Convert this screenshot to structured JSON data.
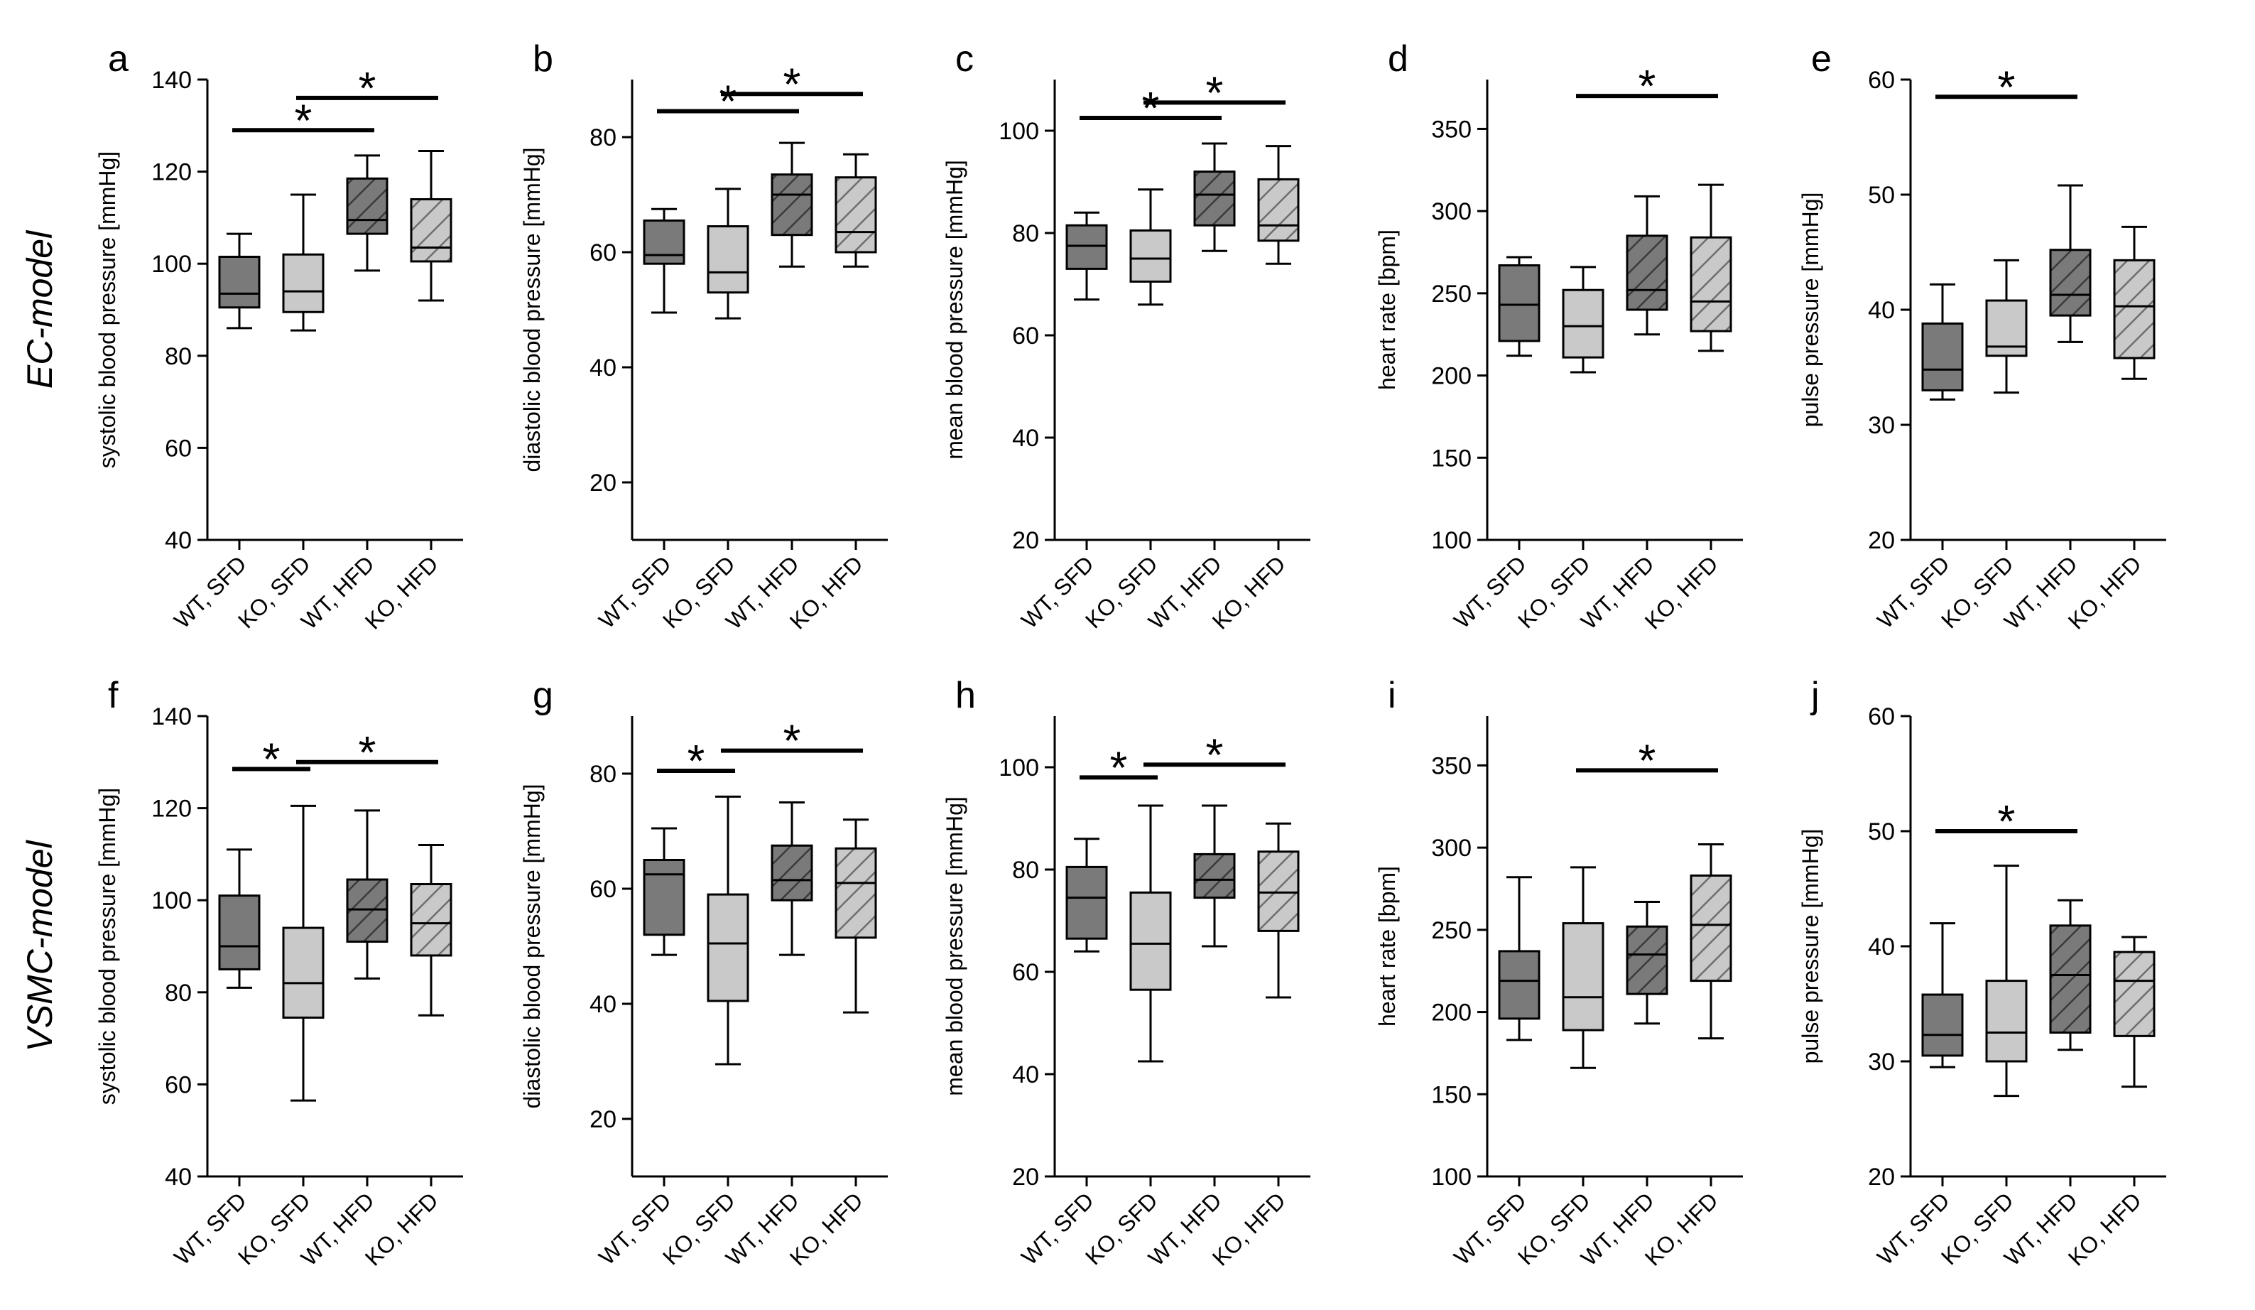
{
  "figure": {
    "row_labels": [
      "EC-model",
      "VSMC-model"
    ],
    "colors": {
      "wt_fill": "#7a7a7a",
      "ko_fill": "#c9c9c9",
      "stroke": "#000000",
      "hatch_wt": "#3a3a3a",
      "hatch_ko": "#6e6e6e"
    }
  },
  "chart_data": [
    {
      "panel": "a",
      "type": "box",
      "ylabel": "systolic blood pressure [mmHg]",
      "categories": [
        "WT, SFD",
        "KO, SFD",
        "WT, HFD",
        "KO, HFD"
      ],
      "ylim": [
        40,
        140
      ],
      "yticks": [
        40,
        60,
        80,
        100,
        120,
        140
      ],
      "boxes": [
        {
          "min": 86,
          "q1": 90.5,
          "median": 93.5,
          "q3": 101.5,
          "max": 106.5
        },
        {
          "min": 85.5,
          "q1": 89.5,
          "median": 94,
          "q3": 102,
          "max": 115
        },
        {
          "min": 98.5,
          "q1": 106.5,
          "median": 109.5,
          "q3": 118.5,
          "max": 123.5
        },
        {
          "min": 92,
          "q1": 100.5,
          "median": 103.5,
          "q3": 114,
          "max": 124.5
        }
      ],
      "significance": [
        {
          "from": 0,
          "to": 2,
          "y": 129,
          "label": "*"
        },
        {
          "from": 1,
          "to": 3,
          "y": 136,
          "label": "*"
        }
      ]
    },
    {
      "panel": "b",
      "type": "box",
      "ylabel": "diastolic blood pressure [mmHg]",
      "categories": [
        "WT, SFD",
        "KO, SFD",
        "WT, HFD",
        "KO, HFD"
      ],
      "ylim": [
        10,
        90
      ],
      "yticks": [
        20,
        40,
        60,
        80
      ],
      "boxes": [
        {
          "min": 49.5,
          "q1": 58,
          "median": 59.5,
          "q3": 65.5,
          "max": 67.5
        },
        {
          "min": 48.5,
          "q1": 53,
          "median": 56.5,
          "q3": 64.5,
          "max": 71
        },
        {
          "min": 57.5,
          "q1": 63,
          "median": 70,
          "q3": 73.5,
          "max": 79
        },
        {
          "min": 57.5,
          "q1": 60,
          "median": 63.5,
          "q3": 73,
          "max": 77
        }
      ],
      "significance": [
        {
          "from": 0,
          "to": 2,
          "y": 84.5,
          "label": "*"
        },
        {
          "from": 1,
          "to": 3,
          "y": 87.5,
          "label": "*"
        }
      ]
    },
    {
      "panel": "c",
      "type": "box",
      "ylabel": "mean blood pressure [mmHg]",
      "categories": [
        "WT, SFD",
        "KO, SFD",
        "WT, HFD",
        "KO, HFD"
      ],
      "ylim": [
        20,
        110
      ],
      "yticks": [
        20,
        40,
        60,
        80,
        100
      ],
      "boxes": [
        {
          "min": 67,
          "q1": 73,
          "median": 77.5,
          "q3": 81.5,
          "max": 84
        },
        {
          "min": 66,
          "q1": 70.5,
          "median": 75,
          "q3": 80.5,
          "max": 88.5
        },
        {
          "min": 76.5,
          "q1": 81.5,
          "median": 87.5,
          "q3": 92,
          "max": 97.5
        },
        {
          "min": 74,
          "q1": 78.5,
          "median": 81.5,
          "q3": 90.5,
          "max": 97
        }
      ],
      "significance": [
        {
          "from": 0,
          "to": 2,
          "y": 102.5,
          "label": "*"
        },
        {
          "from": 1,
          "to": 3,
          "y": 105.5,
          "label": "*"
        }
      ]
    },
    {
      "panel": "d",
      "type": "box",
      "ylabel": "heart rate [bpm]",
      "categories": [
        "WT, SFD",
        "KO, SFD",
        "WT, HFD",
        "KO, HFD"
      ],
      "ylim": [
        100,
        380
      ],
      "yticks": [
        100,
        150,
        200,
        250,
        300,
        350
      ],
      "boxes": [
        {
          "min": 212,
          "q1": 221,
          "median": 243,
          "q3": 267,
          "max": 272
        },
        {
          "min": 202,
          "q1": 211,
          "median": 230,
          "q3": 252,
          "max": 266
        },
        {
          "min": 225,
          "q1": 240,
          "median": 252,
          "q3": 285,
          "max": 309
        },
        {
          "min": 215,
          "q1": 227,
          "median": 245,
          "q3": 284,
          "max": 316
        }
      ],
      "significance": [
        {
          "from": 1,
          "to": 3,
          "y": 370,
          "label": "*"
        }
      ]
    },
    {
      "panel": "e",
      "type": "box",
      "ylabel": "pulse pressure [mmHg]",
      "categories": [
        "WT, SFD",
        "KO, SFD",
        "WT, HFD",
        "KO, HFD"
      ],
      "ylim": [
        20,
        60
      ],
      "yticks": [
        20,
        30,
        40,
        50,
        60
      ],
      "boxes": [
        {
          "min": 32.2,
          "q1": 33,
          "median": 34.8,
          "q3": 38.8,
          "max": 42.2
        },
        {
          "min": 32.8,
          "q1": 36,
          "median": 36.8,
          "q3": 40.8,
          "max": 44.3
        },
        {
          "min": 37.2,
          "q1": 39.5,
          "median": 41.3,
          "q3": 45.2,
          "max": 50.8
        },
        {
          "min": 34,
          "q1": 35.8,
          "median": 40.3,
          "q3": 44.3,
          "max": 47.2
        }
      ],
      "significance": [
        {
          "from": 0,
          "to": 2,
          "y": 58.5,
          "label": "*"
        }
      ]
    },
    {
      "panel": "f",
      "type": "box",
      "ylabel": "systolic blood pressure [mmHg]",
      "categories": [
        "WT, SFD",
        "KO, SFD",
        "WT, HFD",
        "KO, HFD"
      ],
      "ylim": [
        40,
        140
      ],
      "yticks": [
        40,
        60,
        80,
        100,
        120,
        140
      ],
      "boxes": [
        {
          "min": 81,
          "q1": 85,
          "median": 90,
          "q3": 101,
          "max": 111
        },
        {
          "min": 56.5,
          "q1": 74.5,
          "median": 82,
          "q3": 94,
          "max": 120.5
        },
        {
          "min": 83,
          "q1": 91,
          "median": 98,
          "q3": 104.5,
          "max": 119.5
        },
        {
          "min": 75,
          "q1": 88,
          "median": 95,
          "q3": 103.5,
          "max": 112
        }
      ],
      "significance": [
        {
          "from": 0,
          "to": 1,
          "y": 128.5,
          "label": "*"
        },
        {
          "from": 1,
          "to": 3,
          "y": 130,
          "label": "*"
        }
      ]
    },
    {
      "panel": "g",
      "type": "box",
      "ylabel": "diastolic blood pressure [mmHg]",
      "categories": [
        "WT, SFD",
        "KO, SFD",
        "WT, HFD",
        "KO, HFD"
      ],
      "ylim": [
        10,
        90
      ],
      "yticks": [
        20,
        40,
        60,
        80
      ],
      "boxes": [
        {
          "min": 48.5,
          "q1": 52,
          "median": 62.5,
          "q3": 65,
          "max": 70.5
        },
        {
          "min": 29.5,
          "q1": 40.5,
          "median": 50.5,
          "q3": 59,
          "max": 76
        },
        {
          "min": 48.5,
          "q1": 58,
          "median": 61.5,
          "q3": 67.5,
          "max": 75
        },
        {
          "min": 38.5,
          "q1": 51.5,
          "median": 61,
          "q3": 67,
          "max": 72
        }
      ],
      "significance": [
        {
          "from": 0,
          "to": 1,
          "y": 80.5,
          "label": "*"
        },
        {
          "from": 1,
          "to": 3,
          "y": 84,
          "label": "*"
        }
      ]
    },
    {
      "panel": "h",
      "type": "box",
      "ylabel": "mean blood pressure [mmHg]",
      "categories": [
        "WT, SFD",
        "KO, SFD",
        "WT, HFD",
        "KO, HFD"
      ],
      "ylim": [
        20,
        110
      ],
      "yticks": [
        20,
        40,
        60,
        80,
        100
      ],
      "boxes": [
        {
          "min": 64,
          "q1": 66.5,
          "median": 74.5,
          "q3": 80.5,
          "max": 86
        },
        {
          "min": 42.5,
          "q1": 56.5,
          "median": 65.5,
          "q3": 75.5,
          "max": 92.5
        },
        {
          "min": 65,
          "q1": 74.5,
          "median": 78,
          "q3": 83,
          "max": 92.5
        },
        {
          "min": 55,
          "q1": 68,
          "median": 75.5,
          "q3": 83.5,
          "max": 89
        }
      ],
      "significance": [
        {
          "from": 0,
          "to": 1,
          "y": 98,
          "label": "*"
        },
        {
          "from": 1,
          "to": 3,
          "y": 100.5,
          "label": "*"
        }
      ]
    },
    {
      "panel": "i",
      "type": "box",
      "ylabel": "heart rate [bpm]",
      "categories": [
        "WT, SFD",
        "KO, SFD",
        "WT, HFD",
        "KO, HFD"
      ],
      "ylim": [
        100,
        380
      ],
      "yticks": [
        100,
        150,
        200,
        250,
        300,
        350
      ],
      "boxes": [
        {
          "min": 183,
          "q1": 196,
          "median": 219,
          "q3": 237,
          "max": 282
        },
        {
          "min": 166,
          "q1": 189,
          "median": 209,
          "q3": 254,
          "max": 288
        },
        {
          "min": 193,
          "q1": 211,
          "median": 235,
          "q3": 252,
          "max": 267
        },
        {
          "min": 184,
          "q1": 219,
          "median": 253,
          "q3": 283,
          "max": 302
        }
      ],
      "significance": [
        {
          "from": 1,
          "to": 3,
          "y": 347,
          "label": "*"
        }
      ]
    },
    {
      "panel": "j",
      "type": "box",
      "ylabel": "pulse pressure [mmHg]",
      "categories": [
        "WT, SFD",
        "KO, SFD",
        "WT, HFD",
        "KO, HFD"
      ],
      "ylim": [
        20,
        60
      ],
      "yticks": [
        20,
        30,
        40,
        50,
        60
      ],
      "boxes": [
        {
          "min": 29.5,
          "q1": 30.5,
          "median": 32.3,
          "q3": 35.8,
          "max": 42
        },
        {
          "min": 27,
          "q1": 30,
          "median": 32.5,
          "q3": 37,
          "max": 47
        },
        {
          "min": 31,
          "q1": 32.5,
          "median": 37.5,
          "q3": 41.8,
          "max": 44
        },
        {
          "min": 27.8,
          "q1": 32.2,
          "median": 37,
          "q3": 39.5,
          "max": 40.8
        }
      ],
      "significance": [
        {
          "from": 0,
          "to": 2,
          "y": 50,
          "label": "*"
        }
      ]
    }
  ]
}
